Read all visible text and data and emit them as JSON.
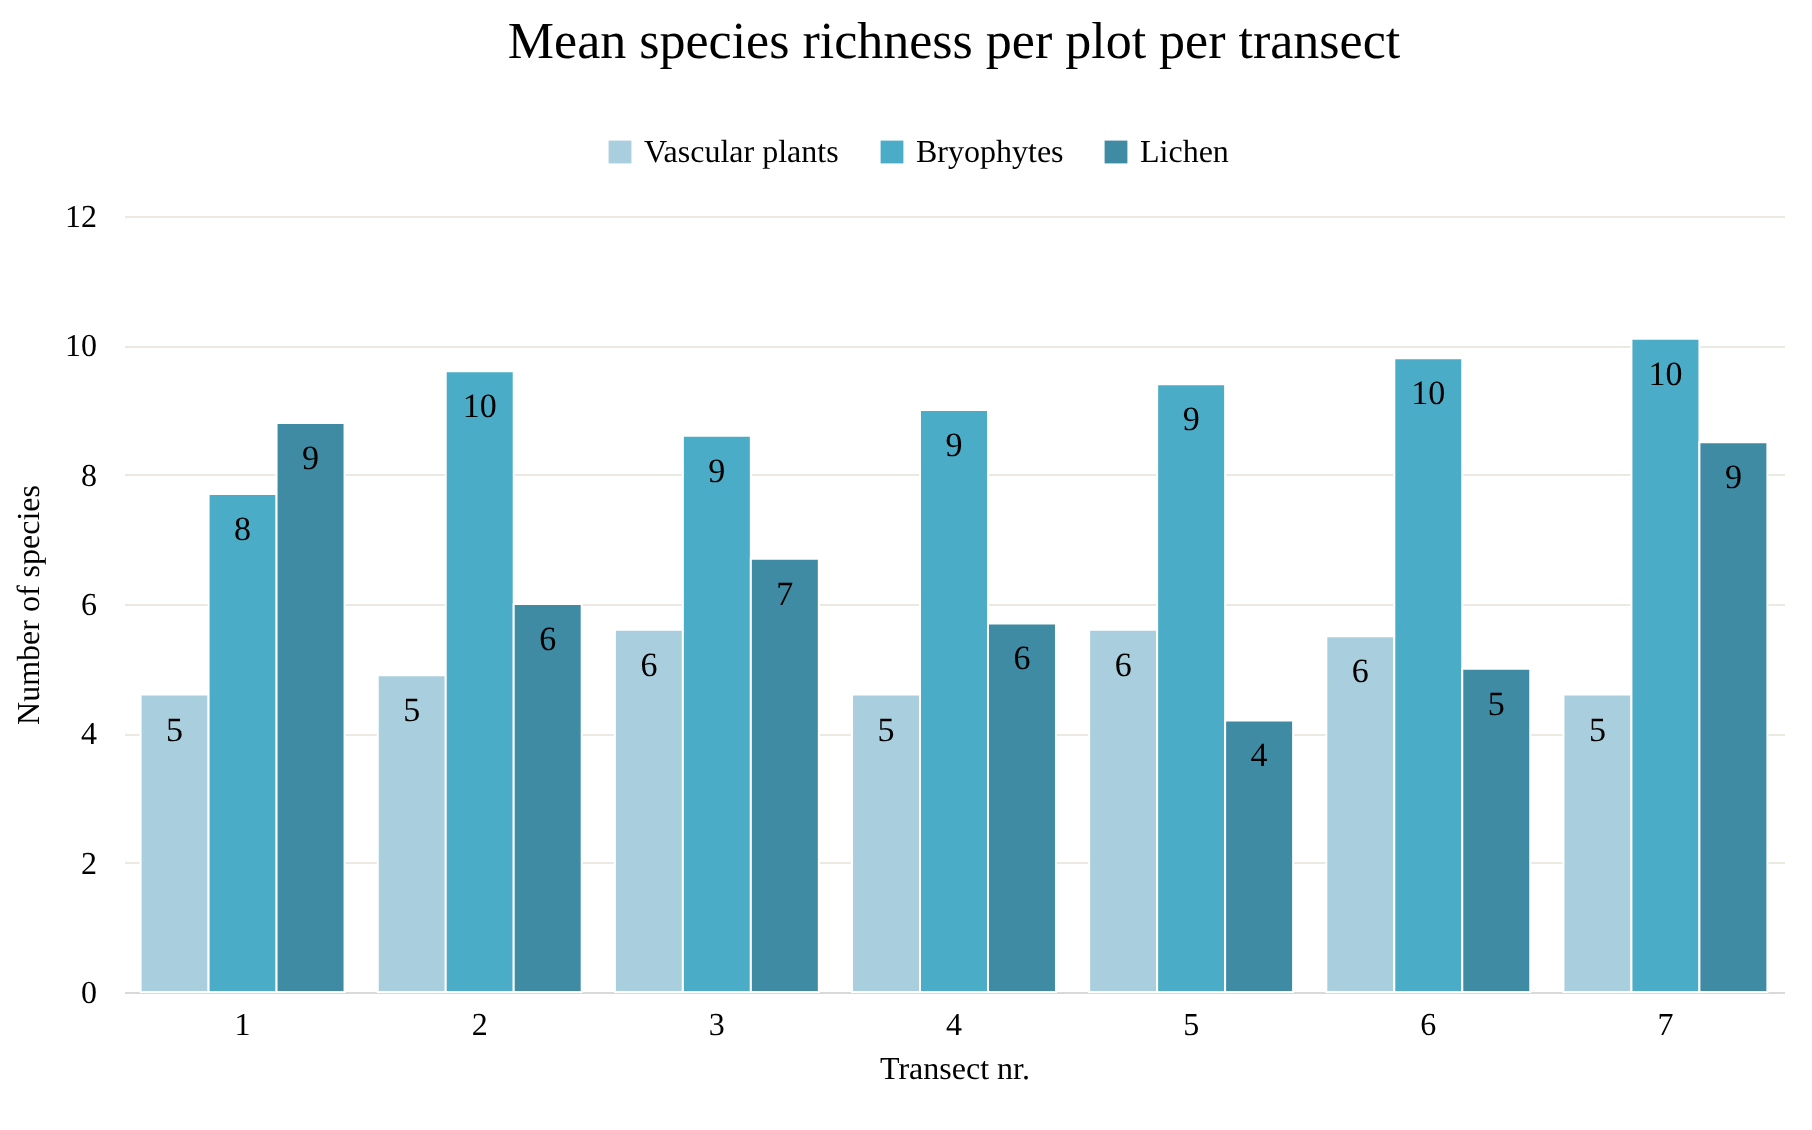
{
  "chart_data": {
    "type": "bar",
    "title": "Mean species richness per plot per transect",
    "xlabel": "Transect nr.",
    "ylabel": "Number of species",
    "categories": [
      "1",
      "2",
      "3",
      "4",
      "5",
      "6",
      "7"
    ],
    "series": [
      {
        "name": "Vascular plants",
        "color": "#a9cedd",
        "values": [
          4.6,
          4.9,
          5.6,
          4.6,
          5.6,
          5.5,
          4.6
        ],
        "value_labels": [
          "5",
          "5",
          "6",
          "5",
          "6",
          "6",
          "5"
        ]
      },
      {
        "name": "Bryophytes",
        "color": "#4aacc6",
        "values": [
          7.7,
          9.6,
          8.6,
          9.0,
          9.4,
          9.8,
          10.1
        ],
        "value_labels": [
          "8",
          "10",
          "9",
          "9",
          "9",
          "10",
          "10"
        ]
      },
      {
        "name": "Lichen",
        "color": "#3e8ba3",
        "values": [
          8.8,
          6.0,
          6.7,
          5.7,
          4.2,
          5.0,
          8.5
        ],
        "value_labels": [
          "9",
          "6",
          "7",
          "6",
          "4",
          "5",
          "9"
        ]
      }
    ],
    "ylim": [
      0,
      12
    ],
    "yticks": [
      0,
      2,
      4,
      6,
      8,
      10,
      12
    ],
    "grid": "y",
    "legend": "top"
  }
}
